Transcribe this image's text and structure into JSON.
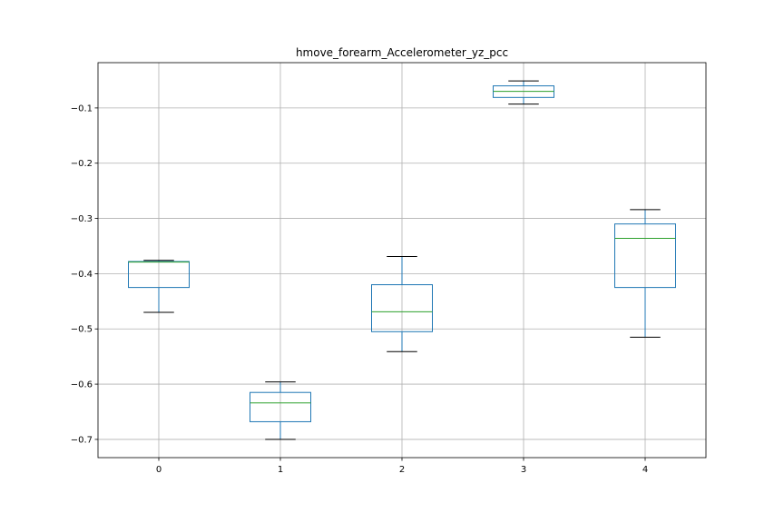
{
  "chart_data": {
    "type": "box",
    "title": "hmove_forearm_Accelerometer_yz_pcc",
    "xlabel": "",
    "ylabel": "",
    "categories": [
      "0",
      "1",
      "2",
      "3",
      "4"
    ],
    "boxes": [
      {
        "category": "0",
        "whisker_low": -0.47,
        "q1": -0.425,
        "median": -0.379,
        "q3": -0.378,
        "whisker_high": -0.376
      },
      {
        "category": "1",
        "whisker_low": -0.7,
        "q1": -0.668,
        "median": -0.634,
        "q3": -0.615,
        "whisker_high": -0.596
      },
      {
        "category": "2",
        "whisker_low": -0.541,
        "q1": -0.505,
        "median": -0.469,
        "q3": -0.42,
        "whisker_high": -0.369
      },
      {
        "category": "3",
        "whisker_low": -0.093,
        "q1": -0.081,
        "median": -0.07,
        "q3": -0.06,
        "whisker_high": -0.051
      },
      {
        "category": "4",
        "whisker_low": -0.515,
        "q1": -0.425,
        "median": -0.336,
        "q3": -0.31,
        "whisker_high": -0.284
      }
    ],
    "ylim": [
      -0.733,
      -0.018
    ],
    "yticks": [
      -0.7,
      -0.6,
      -0.5,
      -0.4,
      -0.3,
      -0.2,
      -0.1
    ],
    "ytick_labels": [
      "−0.7",
      "−0.6",
      "−0.5",
      "−0.4",
      "−0.3",
      "−0.2",
      "−0.1"
    ],
    "grid": true,
    "colors": {
      "box": "#1f77b4",
      "median": "#2ca02c",
      "whisker": "#000000",
      "grid": "#b0b0b0",
      "axis": "#000000"
    }
  }
}
